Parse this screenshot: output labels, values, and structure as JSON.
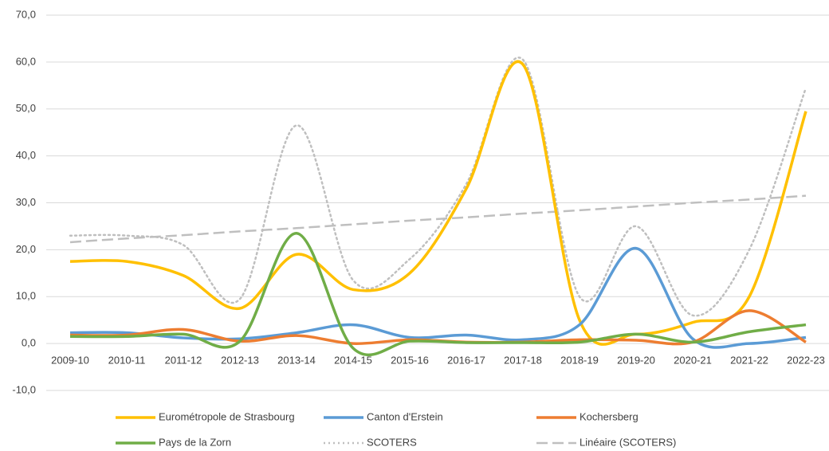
{
  "chart_data": {
    "type": "line",
    "categories": [
      "2009-10",
      "2010-11",
      "2011-12",
      "2012-13",
      "2013-14",
      "2014-15",
      "2015-16",
      "2016-17",
      "2017-18",
      "2018-19",
      "2019-20",
      "2020-21",
      "2021-22",
      "2022-23"
    ],
    "series": [
      {
        "name": "Eurométropole de Strasbourg",
        "color": "#FFC000",
        "style": "solid",
        "values": [
          17.5,
          17.5,
          14.5,
          7.5,
          19,
          11.5,
          15,
          33,
          59.5,
          5,
          2,
          4.5,
          10,
          49.5
        ]
      },
      {
        "name": "Canton d'Erstein",
        "color": "#5B9BD5",
        "style": "solid",
        "values": [
          2.3,
          2.3,
          1.2,
          1,
          2.3,
          4,
          1.3,
          1.8,
          0.8,
          4,
          20.3,
          1,
          0,
          1.3
        ]
      },
      {
        "name": "Kochersberg",
        "color": "#ED7D31",
        "style": "solid",
        "values": [
          1.8,
          1.8,
          3,
          0.5,
          1.7,
          0,
          0.8,
          0.3,
          0.3,
          0.8,
          0.7,
          0.3,
          7,
          0.3
        ]
      },
      {
        "name": "Pays de la Zorn",
        "color": "#70AD47",
        "style": "solid",
        "values": [
          1.5,
          1.5,
          2,
          0.5,
          23.5,
          -1,
          0.5,
          0.2,
          0.2,
          0.3,
          2,
          0.3,
          2.5,
          4
        ]
      },
      {
        "name": "SCOTERS",
        "color": "#BFBFBF",
        "style": "dotted",
        "values": [
          23,
          23,
          21,
          9.5,
          46.5,
          13.5,
          18,
          34,
          60.5,
          10,
          25,
          6,
          20,
          54.5
        ]
      },
      {
        "name": "Linéaire (SCOTERS)",
        "color": "#BFBFBF",
        "style": "dashed",
        "values": [
          21.6,
          22.4,
          23.1,
          23.9,
          24.6,
          25.4,
          26.2,
          26.9,
          27.7,
          28.4,
          29.2,
          30.0,
          30.7,
          31.5
        ]
      }
    ],
    "ylim": [
      -10,
      70
    ],
    "yticks": [
      {
        "value": -10,
        "label": "-10,0"
      },
      {
        "value": 0,
        "label": "0,0"
      },
      {
        "value": 10,
        "label": "10,0"
      },
      {
        "value": 20,
        "label": "20,0"
      },
      {
        "value": 30,
        "label": "30,0"
      },
      {
        "value": 40,
        "label": "40,0"
      },
      {
        "value": 50,
        "label": "50,0"
      },
      {
        "value": 60,
        "label": "60,0"
      },
      {
        "value": 70,
        "label": "70,0"
      }
    ],
    "grid": true,
    "smooth": true,
    "legend": "bottom"
  }
}
